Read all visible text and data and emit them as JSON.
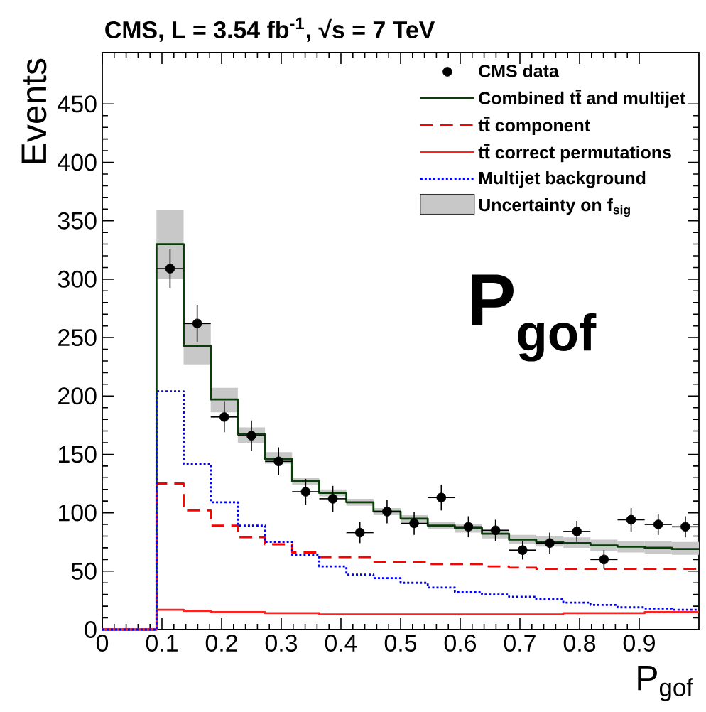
{
  "chart_data": {
    "type": "histogram",
    "title": "CMS, L = 3.54 fb$^{-1}$,  √s = 7 TeV",
    "xlabel": "P$_{gof}$",
    "ylabel": "Events",
    "annotations": [
      "P$_{gof}$"
    ],
    "xlim": [
      0,
      1
    ],
    "ylim": [
      0,
      494
    ],
    "xticks": [
      0,
      0.1,
      0.2,
      0.3,
      0.4,
      0.5,
      0.6,
      0.7,
      0.8,
      0.9
    ],
    "yticks": [
      0,
      50,
      100,
      150,
      200,
      250,
      300,
      350,
      400,
      450
    ],
    "legend": "top right",
    "series": [
      {
        "name": "CMS data",
        "type": "scatter",
        "marker": "circle",
        "color": "#000000",
        "x": [
          0.1136,
          0.1591,
          0.2045,
          0.25,
          0.2955,
          0.3409,
          0.3864,
          0.4318,
          0.4773,
          0.5227,
          0.5682,
          0.6136,
          0.6591,
          0.7045,
          0.75,
          0.7955,
          0.8409,
          0.8864,
          0.9318,
          0.9773
        ],
        "values": [
          309,
          262,
          182,
          166,
          144,
          118,
          112,
          83,
          101,
          91,
          113,
          88,
          85,
          68,
          74,
          84,
          60,
          94,
          90,
          88
        ],
        "errors": [
          17,
          16,
          13,
          13,
          12,
          11,
          11,
          9,
          10,
          10,
          11,
          9,
          9,
          8,
          9,
          9,
          8,
          10,
          9,
          9
        ],
        "xerrors": [
          0.0227,
          0.0227,
          0.0227,
          0.0227,
          0.0227,
          0.0227,
          0.0227,
          0.0227,
          0.0227,
          0.0227,
          0.0227,
          0.0227,
          0.0227,
          0.0227,
          0.0227,
          0.0227,
          0.0227,
          0.0227,
          0.0227,
          0.0227
        ]
      },
      {
        "name": "Combined tt̄ and multijet",
        "line_style": "solid",
        "color": "#0a3d0a",
        "bins": [
          0,
          0.0455,
          0.0909,
          0.1364,
          0.1818,
          0.2273,
          0.2727,
          0.3182,
          0.3636,
          0.4091,
          0.4545,
          0.5,
          0.5455,
          0.5909,
          0.6364,
          0.6818,
          0.7273,
          0.7727,
          0.8182,
          0.8636,
          0.9091,
          0.9545,
          1
        ],
        "values": [
          0,
          0,
          330,
          243,
          197,
          167,
          146,
          127,
          117,
          109,
          101,
          95,
          89,
          87,
          82,
          77,
          75,
          74,
          72,
          71,
          70,
          69
        ]
      },
      {
        "name": "tt̄ component",
        "line_style": "dashed",
        "color": "#ff0000",
        "bins": [
          0,
          0.0455,
          0.0909,
          0.1364,
          0.1818,
          0.2273,
          0.2727,
          0.3182,
          0.3636,
          0.4091,
          0.4545,
          0.5,
          0.5455,
          0.5909,
          0.6364,
          0.6818,
          0.7273,
          0.7727,
          0.8182,
          0.8636,
          0.9091,
          0.9545,
          1
        ],
        "values": [
          0,
          0,
          125,
          102,
          89,
          79,
          73,
          66,
          62,
          62,
          58,
          58,
          56,
          56,
          54,
          53,
          52,
          52,
          52,
          52,
          52,
          52
        ]
      },
      {
        "name": "tt̄ correct permutations",
        "line_style": "solid",
        "color": "#ff2020",
        "bins": [
          0,
          0.0455,
          0.0909,
          0.1364,
          0.1818,
          0.2273,
          0.2727,
          0.3182,
          0.3636,
          0.4091,
          0.4545,
          0.5,
          0.5455,
          0.5909,
          0.6364,
          0.6818,
          0.7273,
          0.7727,
          0.8182,
          0.8636,
          0.9091,
          0.9545,
          1
        ],
        "values": [
          0,
          0,
          17,
          16,
          15,
          15,
          14,
          14,
          13,
          13,
          13,
          13,
          13,
          13,
          13,
          13,
          13,
          14,
          14,
          14,
          15,
          15
        ]
      },
      {
        "name": "Multijet background",
        "line_style": "dotted",
        "color": "#0000ff",
        "bins": [
          0,
          0.0455,
          0.0909,
          0.1364,
          0.1818,
          0.2273,
          0.2727,
          0.3182,
          0.3636,
          0.4091,
          0.4545,
          0.5,
          0.5455,
          0.5909,
          0.6364,
          0.6818,
          0.7273,
          0.7727,
          0.8182,
          0.8636,
          0.9091,
          0.9545,
          1
        ],
        "values": [
          0,
          0,
          204,
          142,
          109,
          89,
          75,
          64,
          54,
          47,
          44,
          40,
          36,
          32,
          30,
          28,
          26,
          23,
          21,
          19,
          18,
          17
        ]
      },
      {
        "name": "Uncertainty on f$_{sig}$",
        "type": "bar",
        "color": "#c8c8c8",
        "x": [
          0.1136,
          0.1591,
          0.2045,
          0.25,
          0.2955,
          0.3409,
          0.3864,
          0.4318,
          0.4773,
          0.5227,
          0.5682,
          0.6136,
          0.6591,
          0.7045,
          0.75,
          0.7955,
          0.8409,
          0.8864,
          0.9318,
          0.9773
        ],
        "base": [
          300,
          227,
          186,
          160,
          142,
          124,
          114,
          106,
          98,
          92,
          86,
          83,
          78,
          73,
          71,
          70,
          67,
          66,
          65,
          64
        ],
        "values": [
          59,
          35,
          21,
          13,
          10,
          6,
          6,
          6,
          6,
          6,
          6,
          7,
          7,
          8,
          9,
          9,
          10,
          10,
          11,
          11
        ]
      }
    ]
  }
}
